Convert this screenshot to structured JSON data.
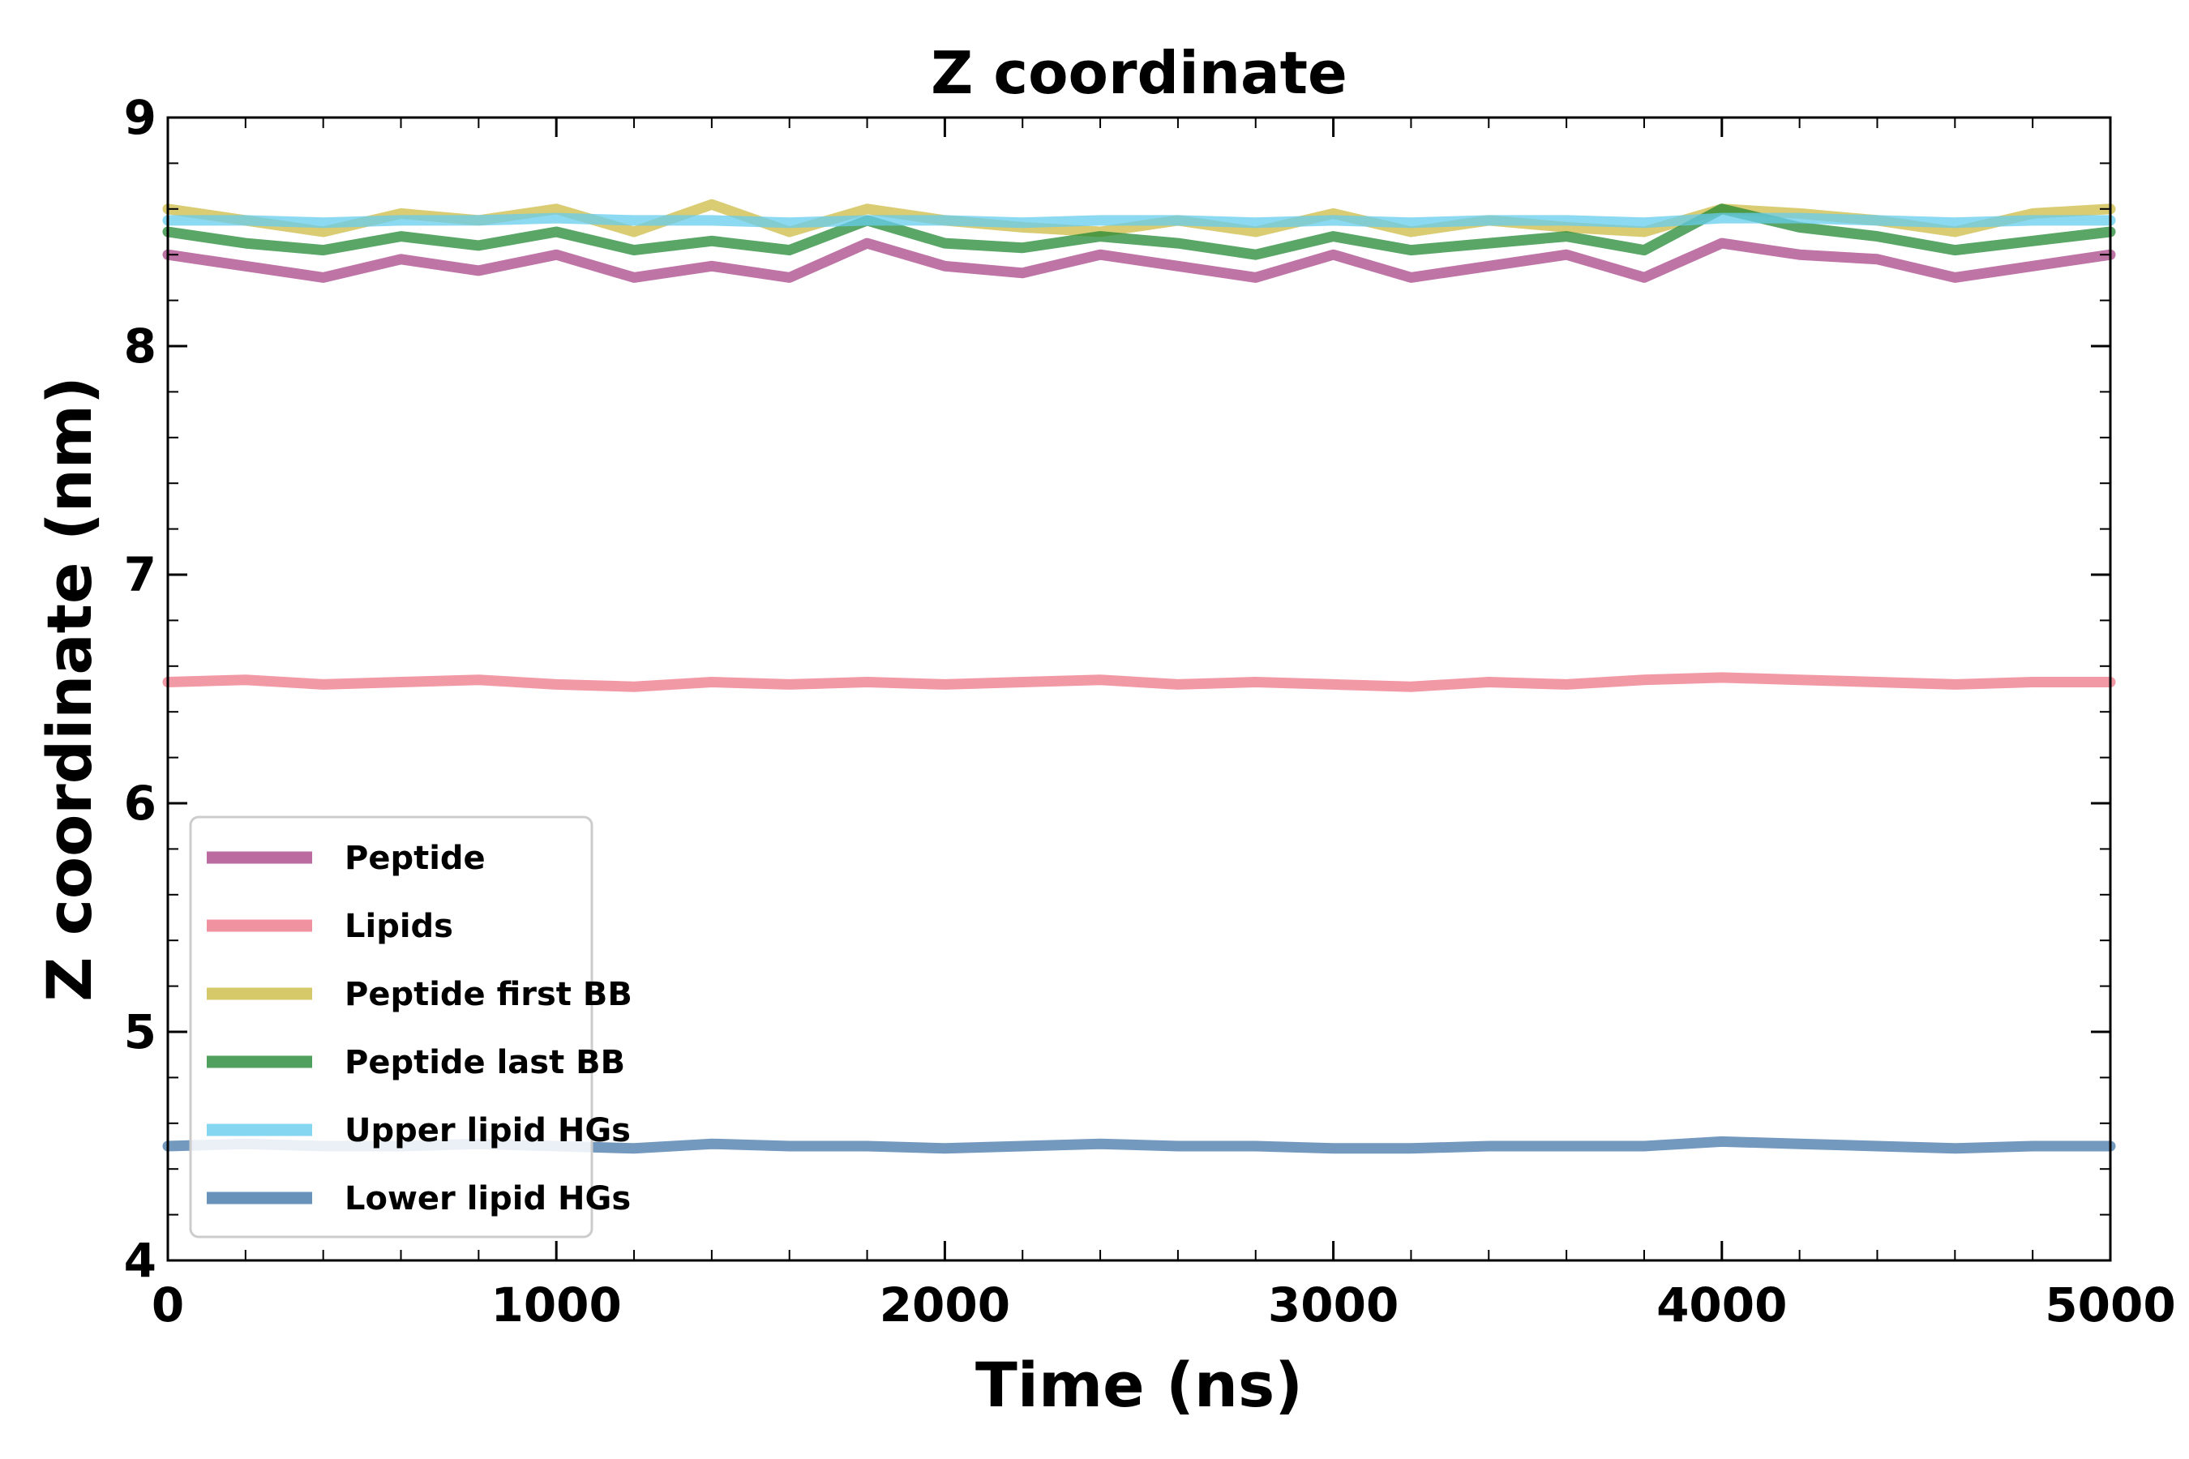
{
  "chart_data": {
    "type": "line",
    "title": "Z coordinate",
    "xlabel": "Time (ns)",
    "ylabel": "Z coordinate (nm)",
    "xlim": [
      0,
      5000
    ],
    "ylim": [
      4,
      9
    ],
    "x_ticks": [
      0,
      1000,
      2000,
      3000,
      4000,
      5000
    ],
    "y_ticks": [
      4,
      5,
      6,
      7,
      8,
      9
    ],
    "x_minor_step": 200,
    "y_minor_step": 0.2,
    "grid": false,
    "legend_position": "lower-left",
    "series": [
      {
        "name": "Peptide",
        "color": "#aa4688",
        "key": "peptide",
        "x": [
          0,
          200,
          400,
          600,
          800,
          1000,
          1200,
          1400,
          1600,
          1800,
          2000,
          2200,
          2400,
          2600,
          2800,
          3000,
          3200,
          3400,
          3600,
          3800,
          4000,
          4200,
          4400,
          4600,
          4800,
          5000
        ],
        "y": [
          8.4,
          8.35,
          8.3,
          8.38,
          8.33,
          8.4,
          8.3,
          8.35,
          8.3,
          8.45,
          8.35,
          8.32,
          8.4,
          8.35,
          8.3,
          8.4,
          8.3,
          8.35,
          8.4,
          8.3,
          8.45,
          8.4,
          8.38,
          8.3,
          8.35,
          8.4
        ]
      },
      {
        "name": "Lipids",
        "color": "#ee7788",
        "key": "lipids",
        "x": [
          0,
          200,
          400,
          600,
          800,
          1000,
          1200,
          1400,
          1600,
          1800,
          2000,
          2200,
          2400,
          2600,
          2800,
          3000,
          3200,
          3400,
          3600,
          3800,
          4000,
          4200,
          4400,
          4600,
          4800,
          5000
        ],
        "y": [
          6.53,
          6.54,
          6.52,
          6.53,
          6.54,
          6.52,
          6.51,
          6.53,
          6.52,
          6.53,
          6.52,
          6.53,
          6.54,
          6.52,
          6.53,
          6.52,
          6.51,
          6.53,
          6.52,
          6.54,
          6.55,
          6.54,
          6.53,
          6.52,
          6.53,
          6.53
        ]
      },
      {
        "name": "Peptide first BB",
        "color": "#ccbb44",
        "key": "first_bb",
        "x": [
          0,
          200,
          400,
          600,
          800,
          1000,
          1200,
          1400,
          1600,
          1800,
          2000,
          2200,
          2400,
          2600,
          2800,
          3000,
          3200,
          3400,
          3600,
          3800,
          4000,
          4200,
          4400,
          4600,
          4800,
          5000
        ],
        "y": [
          8.6,
          8.55,
          8.5,
          8.58,
          8.55,
          8.6,
          8.5,
          8.62,
          8.5,
          8.6,
          8.55,
          8.52,
          8.5,
          8.55,
          8.5,
          8.58,
          8.5,
          8.55,
          8.52,
          8.5,
          8.6,
          8.58,
          8.55,
          8.5,
          8.58,
          8.6
        ]
      },
      {
        "name": "Peptide last BB",
        "color": "#228833",
        "key": "last_bb",
        "x": [
          0,
          200,
          400,
          600,
          800,
          1000,
          1200,
          1400,
          1600,
          1800,
          2000,
          2200,
          2400,
          2600,
          2800,
          3000,
          3200,
          3400,
          3600,
          3800,
          4000,
          4200,
          4400,
          4600,
          4800,
          5000
        ],
        "y": [
          8.5,
          8.45,
          8.42,
          8.48,
          8.44,
          8.5,
          8.42,
          8.46,
          8.42,
          8.55,
          8.45,
          8.43,
          8.48,
          8.45,
          8.4,
          8.48,
          8.42,
          8.45,
          8.48,
          8.42,
          8.6,
          8.52,
          8.48,
          8.42,
          8.46,
          8.5
        ]
      },
      {
        "name": "Upper lipid HGs",
        "color": "#66ccee",
        "key": "upper_hg",
        "x": [
          0,
          200,
          400,
          600,
          800,
          1000,
          1200,
          1400,
          1600,
          1800,
          2000,
          2200,
          2400,
          2600,
          2800,
          3000,
          3200,
          3400,
          3600,
          3800,
          4000,
          4200,
          4400,
          4600,
          4800,
          5000
        ],
        "y": [
          8.55,
          8.55,
          8.54,
          8.55,
          8.55,
          8.56,
          8.55,
          8.55,
          8.54,
          8.55,
          8.55,
          8.54,
          8.55,
          8.55,
          8.54,
          8.55,
          8.54,
          8.55,
          8.55,
          8.54,
          8.56,
          8.56,
          8.55,
          8.54,
          8.55,
          8.55
        ]
      },
      {
        "name": "Lower lipid HGs",
        "color": "#4477aa",
        "key": "lower_hg",
        "x": [
          0,
          200,
          400,
          600,
          800,
          1000,
          1200,
          1400,
          1600,
          1800,
          2000,
          2200,
          2400,
          2600,
          2800,
          3000,
          3200,
          3400,
          3600,
          3800,
          4000,
          4200,
          4400,
          4600,
          4800,
          5000
        ],
        "y": [
          4.5,
          4.51,
          4.5,
          4.5,
          4.51,
          4.5,
          4.49,
          4.51,
          4.5,
          4.5,
          4.49,
          4.5,
          4.51,
          4.5,
          4.5,
          4.49,
          4.49,
          4.5,
          4.5,
          4.5,
          4.52,
          4.51,
          4.5,
          4.49,
          4.5,
          4.5
        ]
      }
    ]
  }
}
